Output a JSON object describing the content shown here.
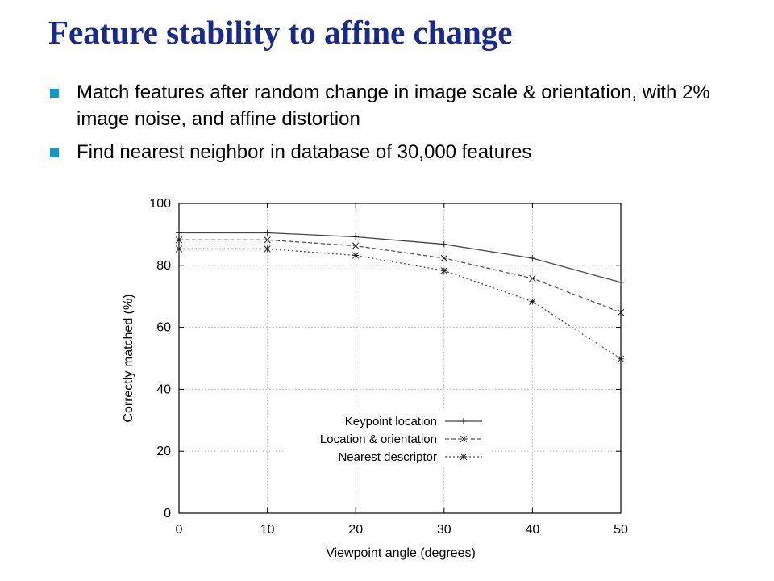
{
  "slide": {
    "title": "Feature stability to affine change",
    "bullets": [
      "Match features after random change in image scale & orientation, with 2% image noise, and affine distortion",
      "Find nearest neighbor in database of 30,000 features"
    ],
    "bullet_color": "#1796c7",
    "title_color": "#1a2a8c"
  },
  "chart_data": {
    "type": "line",
    "xlabel": "Viewpoint angle (degrees)",
    "ylabel": "Correctly matched (%)",
    "xlim": [
      0,
      50
    ],
    "ylim": [
      0,
      100
    ],
    "xticks": [
      0,
      10,
      20,
      30,
      40,
      50
    ],
    "yticks": [
      0,
      20,
      40,
      60,
      80,
      100
    ],
    "grid": true,
    "legend_position": "center-bottom",
    "x": [
      0,
      10,
      20,
      30,
      40,
      50
    ],
    "series": [
      {
        "name": "Keypoint location",
        "values": [
          90.5,
          90.5,
          89.2,
          86.8,
          82.3,
          74.5
        ],
        "marker": "plus",
        "dash": "solid"
      },
      {
        "name": "Location & orientation",
        "values": [
          88.2,
          88.2,
          86.3,
          82.3,
          75.8,
          64.8
        ],
        "marker": "x",
        "dash": "dashed"
      },
      {
        "name": "Nearest descriptor",
        "values": [
          85.3,
          85.3,
          83.2,
          78.3,
          68.3,
          49.8
        ],
        "marker": "star",
        "dash": "dotted"
      }
    ]
  }
}
